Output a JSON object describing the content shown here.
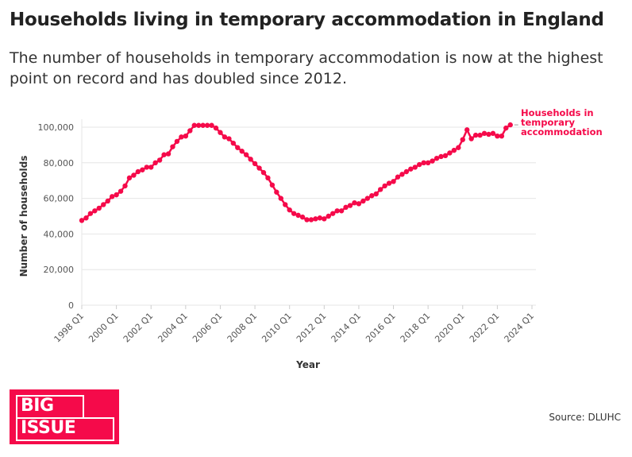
{
  "title": "Households living in temporary accommodation in England",
  "subtitle": "The number of households in temporary accommodation is now at the highest point on record and has doubled since 2012.",
  "source": "Source: DLUHC",
  "logo": {
    "line1": "BIG",
    "line2": "ISSUE"
  },
  "colors": {
    "series": "#f50a4a",
    "grid": "#e6e6e6",
    "logo": "#f50a4a"
  },
  "chart_data": {
    "type": "line",
    "xlabel": "Year",
    "ylabel": "Number of households",
    "ylim": [
      0,
      100000
    ],
    "yticks": [
      0,
      20000,
      40000,
      60000,
      80000,
      100000
    ],
    "ytick_labels": [
      "0",
      "20,000",
      "40,000",
      "60,000",
      "80,000",
      "100,000"
    ],
    "xticks": [
      "1998 Q1",
      "2000 Q1",
      "2002 Q1",
      "2004 Q1",
      "2006 Q1",
      "2008 Q1",
      "2010 Q1",
      "2012 Q1",
      "2014 Q1",
      "2016 Q1",
      "2018 Q1",
      "2020 Q1",
      "2022 Q1",
      "2024 Q1"
    ],
    "grid": true,
    "x_start": "1998 Q1",
    "x_end": "2022 Q4",
    "series": [
      {
        "name": "Households in temporary accommodation",
        "markers": true,
        "values": [
          47600,
          49000,
          51500,
          53000,
          54500,
          56500,
          58500,
          61000,
          62000,
          64000,
          67000,
          71500,
          73000,
          75000,
          76000,
          77500,
          77500,
          80000,
          81500,
          84500,
          85000,
          89000,
          92000,
          94500,
          95000,
          98000,
          101000,
          101000,
          101000,
          101000,
          101000,
          99500,
          97000,
          94500,
          93500,
          91000,
          88500,
          86500,
          84500,
          82000,
          79500,
          77000,
          74500,
          71500,
          67500,
          63500,
          60000,
          56500,
          53500,
          51500,
          50500,
          49500,
          48000,
          48000,
          48500,
          49000,
          48500,
          50000,
          51500,
          53000,
          53000,
          55000,
          56000,
          57500,
          57000,
          58500,
          60000,
          61500,
          62500,
          65000,
          67000,
          68500,
          69500,
          72000,
          73500,
          75000,
          76500,
          77500,
          79000,
          80000,
          80000,
          81000,
          82500,
          83500,
          84000,
          85500,
          87000,
          88500,
          93000,
          98500,
          93500,
          95500,
          95500,
          96500,
          96000,
          96500,
          95000,
          95000,
          99500,
          101300
        ]
      }
    ]
  }
}
